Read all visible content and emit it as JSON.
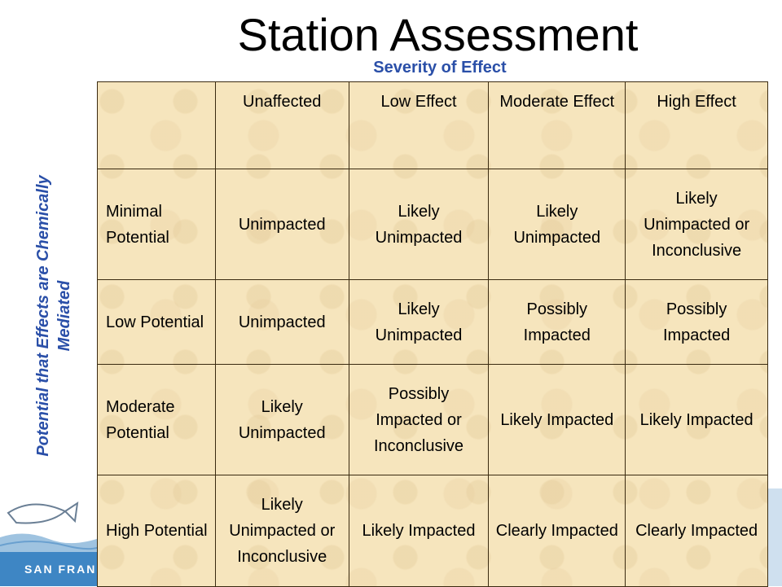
{
  "title": "Station Assessment",
  "subtitle": "Severity of Effect",
  "side_label": "Potential that Effects are Chemically Mediated",
  "logo_text": "SAN FRANC",
  "colors": {
    "accent": "#2a4fa8",
    "table_bg": "#f6e5bd",
    "logo_band": "#3e86c4"
  },
  "table": {
    "headers": [
      "",
      "Unaffected",
      "Low Effect",
      "Moderate Effect",
      "High Effect"
    ],
    "rows": [
      {
        "label": "Minimal Potential",
        "cells": [
          "Unimpacted",
          "Likely Unimpacted",
          "Likely Unimpacted",
          "Likely Unimpacted or Inconclusive"
        ]
      },
      {
        "label": "Low Potential",
        "cells": [
          "Unimpacted",
          "Likely Unimpacted",
          "Possibly Impacted",
          "Possibly Impacted"
        ]
      },
      {
        "label": "Moderate Potential",
        "cells": [
          "Likely Unimpacted",
          "Possibly Impacted or Inconclusive",
          "Likely Impacted",
          "Likely Impacted"
        ]
      },
      {
        "label": "High Potential",
        "cells": [
          "Likely Unimpacted or Inconclusive",
          "Likely Impacted",
          "Clearly Impacted",
          "Clearly Impacted"
        ]
      }
    ]
  }
}
